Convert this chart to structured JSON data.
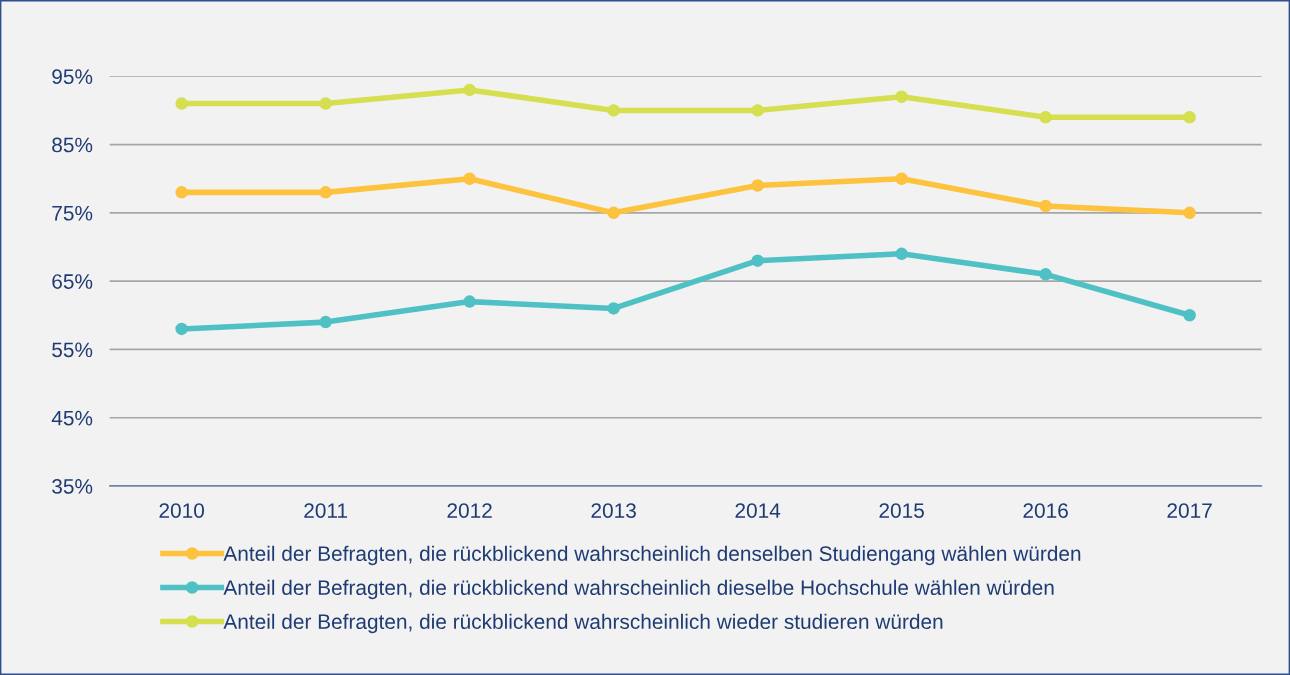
{
  "chart_data": {
    "type": "line",
    "categories": [
      "2010",
      "2011",
      "2012",
      "2013",
      "2014",
      "2015",
      "2016",
      "2017"
    ],
    "series": [
      {
        "name": "Anteil der Befragten, die rückblickend wahrscheinlich denselben Studiengang wählen würden",
        "color": "#fdc23e",
        "values": [
          78,
          78,
          80,
          75,
          79,
          80,
          76,
          75
        ]
      },
      {
        "name": "Anteil der Befragten, die rückblickend wahrscheinlich dieselbe Hochschule wählen würden",
        "color": "#4fc1c5",
        "values": [
          58,
          59,
          62,
          61,
          68,
          69,
          66,
          60
        ]
      },
      {
        "name": "Anteil der Befragten, die rückblickend wahrscheinlich wieder studieren würden",
        "color": "#d5df4f",
        "values": [
          91,
          91,
          93,
          90,
          90,
          92,
          89,
          89
        ]
      }
    ],
    "ylim": [
      35,
      95
    ],
    "yticks": [
      {
        "value": 35,
        "label": "35%"
      },
      {
        "value": 45,
        "label": "45%"
      },
      {
        "value": 55,
        "label": "55%"
      },
      {
        "value": 65,
        "label": "65%"
      },
      {
        "value": 75,
        "label": "75%"
      },
      {
        "value": 85,
        "label": "85%"
      },
      {
        "value": 95,
        "label": "95%"
      }
    ],
    "grid": "y",
    "legend": "bottom",
    "marker": "circle",
    "line_style": "solid"
  }
}
